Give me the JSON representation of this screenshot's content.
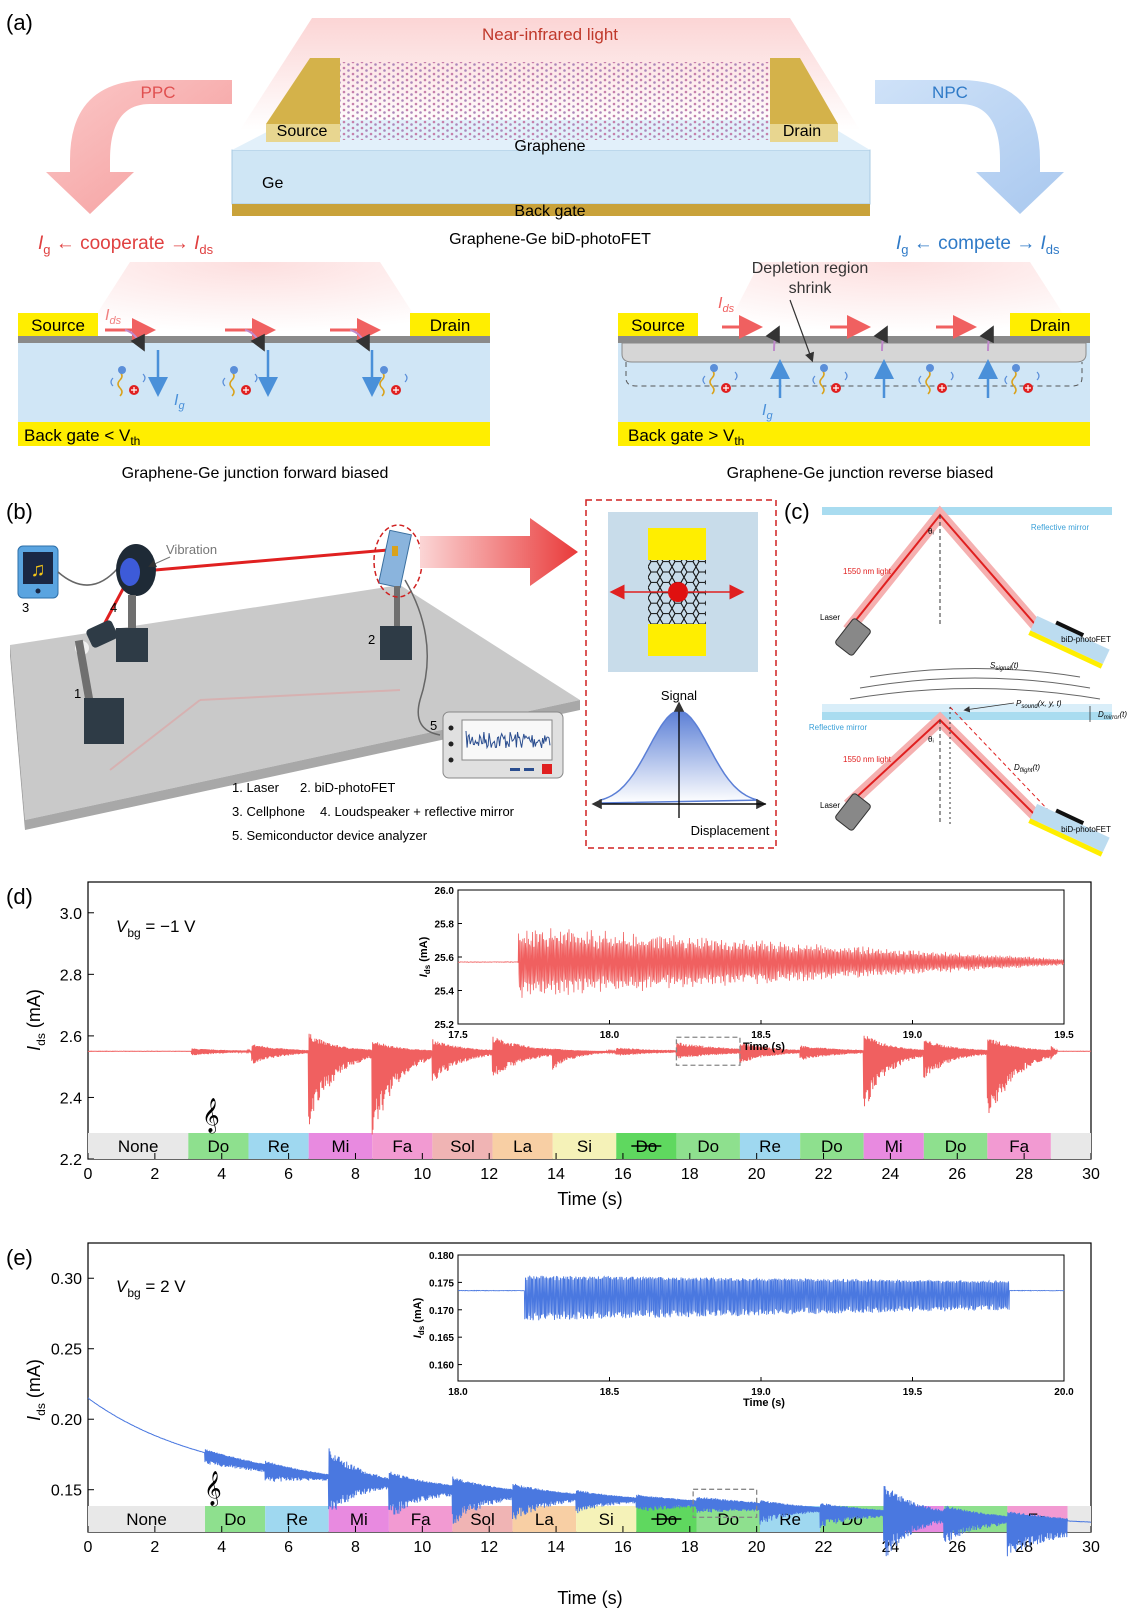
{
  "panel_a": {
    "label": "(a)",
    "near_ir": "Near-infrared light",
    "ppc": "PPC",
    "npc": "NPC",
    "source": "Source",
    "drain": "Drain",
    "graphene": "Graphene",
    "ge": "Ge",
    "back_gate": "Back gate",
    "device_title": "Graphene-Ge biD-photoFET",
    "ig": "I",
    "ig_sub": "g",
    "cooperate": " ← cooperate → ",
    "compete": " ← compete → ",
    "ids": "I",
    "ids_sub": "ds",
    "depletion1": "Depletion region",
    "depletion2": "shrink",
    "bg_lt": "Back gate < V",
    "bg_gt": "Back gate > V",
    "vth_sub": "th",
    "forward": "Graphene-Ge junction forward biased",
    "reverse": "Graphene-Ge junction reverse biased",
    "colors": {
      "ppc": "#f07070",
      "npc": "#4a90d9",
      "gold": "#d4b24a",
      "ge": "#cfe6f5",
      "yellow": "#ffee00"
    }
  },
  "panel_b": {
    "label": "(b)",
    "vibration": "Vibration",
    "n1": "1",
    "n2": "2",
    "n3": "3",
    "n4": "4",
    "n5": "5",
    "legend1": "1. Laser",
    "legend2": "2. biD-photoFET",
    "legend3": "3. Cellphone",
    "legend4": "4. Loudspeaker + reflective mirror",
    "legend5": "5. Semiconductor device analyzer",
    "signal": "Signal",
    "displacement": "Displacement"
  },
  "panel_c": {
    "label": "(c)",
    "mirror": "Reflective mirror",
    "light": "1550 nm light",
    "laser": "Laser",
    "device": "biD-photoFET",
    "theta": "θᵢ",
    "s_signal": "S",
    "s_signal_sub": "signal",
    "s_signal_arg": "(t)",
    "p_sound": "P",
    "p_sound_sub": "sound",
    "p_sound_arg": "(x, y, t)",
    "d_mirror": "D",
    "d_mirror_sub": "mirror",
    "d_mirror_arg": "(t)",
    "d_flight": "D",
    "d_flight_sub": "flight",
    "d_flight_arg": "(t)"
  },
  "chart_data": [
    {
      "type": "line",
      "panel": "(d)",
      "annotation": "V",
      "annotation_sub": "bg",
      "annotation_rest": " = −1 V",
      "xlabel": "Time (s)",
      "ylabel": "I",
      "ylabel_sub": "ds",
      "ylabel_rest": " (mA)",
      "xlim": [
        0,
        30
      ],
      "ylim": [
        2.2,
        3.1
      ],
      "xticks": [
        "0",
        "2",
        "4",
        "6",
        "8",
        "10",
        "12",
        "14",
        "16",
        "18",
        "20",
        "22",
        "24",
        "26",
        "28",
        "30"
      ],
      "yticks": [
        "2.2",
        "2.4",
        "2.6",
        "2.8",
        "3.0"
      ],
      "baseline": 2.55,
      "color": "#f06060",
      "notes": [
        {
          "label": "None",
          "start": 0,
          "end": 3.0,
          "color": "#e8e8e8"
        },
        {
          "label": "Do",
          "start": 3.0,
          "end": 4.8,
          "color": "#8ee08e"
        },
        {
          "label": "Re",
          "start": 4.8,
          "end": 6.6,
          "color": "#9fd8f0"
        },
        {
          "label": "Mi",
          "start": 6.6,
          "end": 8.5,
          "color": "#e88ae0"
        },
        {
          "label": "Fa",
          "start": 8.5,
          "end": 10.3,
          "color": "#f29ad2"
        },
        {
          "label": "Sol",
          "start": 10.3,
          "end": 12.1,
          "color": "#f0b4b4"
        },
        {
          "label": "La",
          "start": 12.1,
          "end": 13.9,
          "color": "#f8cfa4"
        },
        {
          "label": "Si",
          "start": 13.9,
          "end": 15.8,
          "color": "#f5f2b8"
        },
        {
          "label": "Do",
          "start": 15.8,
          "end": 17.6,
          "color": "#5fd85f",
          "strike": true
        },
        {
          "label": "Do",
          "start": 17.6,
          "end": 19.5,
          "color": "#8ee08e"
        },
        {
          "label": "Re",
          "start": 19.5,
          "end": 21.3,
          "color": "#9fd8f0"
        },
        {
          "label": "Do",
          "start": 21.3,
          "end": 23.2,
          "color": "#8ee08e"
        },
        {
          "label": "Mi",
          "start": 23.2,
          "end": 25.0,
          "color": "#e88ae0"
        },
        {
          "label": "Do",
          "start": 25.0,
          "end": 26.9,
          "color": "#8ee08e"
        },
        {
          "label": "Fa",
          "start": 26.9,
          "end": 28.8,
          "color": "#f29ad2"
        },
        {
          "label": "",
          "start": 28.8,
          "end": 30,
          "color": "#e8e8e8"
        }
      ],
      "bursts": [
        {
          "start": 3.1,
          "end": 4.9,
          "down": 0.015,
          "up": 0.01,
          "decay": 0.5
        },
        {
          "start": 4.9,
          "end": 6.6,
          "down": 0.045,
          "up": 0.025,
          "decay": 0.6
        },
        {
          "start": 6.6,
          "end": 8.5,
          "down": 0.25,
          "up": 0.06,
          "decay": 0.8
        },
        {
          "start": 8.5,
          "end": 10.3,
          "down": 0.3,
          "up": 0.04,
          "decay": 0.8
        },
        {
          "start": 10.3,
          "end": 12.1,
          "down": 0.11,
          "up": 0.04,
          "decay": 0.7
        },
        {
          "start": 12.1,
          "end": 13.9,
          "down": 0.09,
          "up": 0.05,
          "decay": 0.6
        },
        {
          "start": 13.9,
          "end": 15.8,
          "down": 0.06,
          "up": 0.01,
          "decay": 0.9
        },
        {
          "start": 15.8,
          "end": 17.6,
          "down": 0.015,
          "up": 0.012,
          "decay": 0.4
        },
        {
          "start": 17.6,
          "end": 19.5,
          "down": 0.025,
          "up": 0.03,
          "decay": 0.4
        },
        {
          "start": 19.5,
          "end": 21.3,
          "down": 0.04,
          "up": 0.03,
          "decay": 0.6
        },
        {
          "start": 21.3,
          "end": 23.2,
          "down": 0.03,
          "up": 0.02,
          "decay": 0.5
        },
        {
          "start": 23.2,
          "end": 25.0,
          "down": 0.2,
          "up": 0.06,
          "decay": 0.8
        },
        {
          "start": 25.0,
          "end": 26.9,
          "down": 0.09,
          "up": 0.04,
          "decay": 0.7
        },
        {
          "start": 26.9,
          "end": 28.8,
          "down": 0.25,
          "up": 0.05,
          "decay": 0.8
        },
        {
          "start": 28.8,
          "end": 29.0,
          "down": 0.03,
          "up": 0.02,
          "decay": 0.5
        }
      ],
      "inset": {
        "xlim": [
          17.5,
          19.5
        ],
        "ylim": [
          25.2,
          26.0
        ],
        "xticks": [
          "17.5",
          "18.0",
          "18.5",
          "19.0",
          "19.5"
        ],
        "yticks": [
          "25.2",
          "25.4",
          "25.6",
          "25.8",
          "26.0"
        ],
        "xlabel": "Time (s)",
        "ylabel": "I",
        "ylabel_sub": "ds",
        "ylabel_rest": " (mA)",
        "baseline": 25.57,
        "onset": 17.7,
        "amp_start": 0.22,
        "amp_end": 0.02
      }
    },
    {
      "type": "line",
      "panel": "(e)",
      "annotation": "V",
      "annotation_sub": "bg",
      "annotation_rest": " = 2 V",
      "xlabel": "Time (s)",
      "ylabel": "I",
      "ylabel_sub": "ds",
      "ylabel_rest": " (mA)",
      "xlim": [
        0,
        30
      ],
      "ylim": [
        0.12,
        0.325
      ],
      "xticks": [
        "0",
        "2",
        "4",
        "6",
        "8",
        "10",
        "12",
        "14",
        "16",
        "18",
        "20",
        "22",
        "24",
        "26",
        "28",
        "30"
      ],
      "yticks": [
        "0.15",
        "0.20",
        "0.25",
        "0.30"
      ],
      "color": "#4a78e0",
      "notes": [
        {
          "label": "None",
          "start": 0,
          "end": 3.5,
          "color": "#e8e8e8"
        },
        {
          "label": "Do",
          "start": 3.5,
          "end": 5.3,
          "color": "#8ee08e"
        },
        {
          "label": "Re",
          "start": 5.3,
          "end": 7.2,
          "color": "#9fd8f0"
        },
        {
          "label": "Mi",
          "start": 7.2,
          "end": 9.0,
          "color": "#e88ae0"
        },
        {
          "label": "Fa",
          "start": 9.0,
          "end": 10.9,
          "color": "#f29ad2"
        },
        {
          "label": "Sol",
          "start": 10.9,
          "end": 12.7,
          "color": "#f0b4b4"
        },
        {
          "label": "La",
          "start": 12.7,
          "end": 14.6,
          "color": "#f8cfa4"
        },
        {
          "label": "Si",
          "start": 14.6,
          "end": 16.4,
          "color": "#f5f2b8"
        },
        {
          "label": "Do",
          "start": 16.4,
          "end": 18.2,
          "color": "#5fd85f",
          "strike": true
        },
        {
          "label": "Do",
          "start": 18.2,
          "end": 20.1,
          "color": "#8ee08e"
        },
        {
          "label": "Re",
          "start": 20.1,
          "end": 21.9,
          "color": "#9fd8f0"
        },
        {
          "label": "Do",
          "start": 21.9,
          "end": 23.8,
          "color": "#8ee08e"
        },
        {
          "label": "Mi",
          "start": 23.8,
          "end": 25.6,
          "color": "#e88ae0"
        },
        {
          "label": "Do",
          "start": 25.6,
          "end": 27.5,
          "color": "#8ee08e"
        },
        {
          "label": "Fa",
          "start": 27.5,
          "end": 29.3,
          "color": "#f29ad2"
        },
        {
          "label": "",
          "start": 29.3,
          "end": 30,
          "color": "#e8e8e8"
        }
      ],
      "bursts": [
        {
          "start": 3.5,
          "end": 5.3,
          "down": 0.008,
          "up": 0.003,
          "decay": 0.2
        },
        {
          "start": 5.3,
          "end": 7.2,
          "down": 0.012,
          "up": 0.004,
          "decay": 0.4
        },
        {
          "start": 7.2,
          "end": 9.0,
          "down": 0.03,
          "up": 0.02,
          "decay": 0.6
        },
        {
          "start": 9.0,
          "end": 10.9,
          "down": 0.028,
          "up": 0.008,
          "decay": 0.5
        },
        {
          "start": 10.9,
          "end": 12.7,
          "down": 0.028,
          "up": 0.008,
          "decay": 0.5
        },
        {
          "start": 12.7,
          "end": 14.6,
          "down": 0.022,
          "up": 0.006,
          "decay": 0.5
        },
        {
          "start": 14.6,
          "end": 16.4,
          "down": 0.014,
          "up": 0.004,
          "decay": 0.5
        },
        {
          "start": 16.4,
          "end": 18.2,
          "down": 0.01,
          "up": 0.003,
          "decay": 0.3
        },
        {
          "start": 18.2,
          "end": 20.1,
          "down": 0.008,
          "up": 0.004,
          "decay": 0.2
        },
        {
          "start": 20.1,
          "end": 21.9,
          "down": 0.014,
          "up": 0.004,
          "decay": 0.5
        },
        {
          "start": 21.9,
          "end": 23.8,
          "down": 0.014,
          "up": 0.004,
          "decay": 0.4
        },
        {
          "start": 23.8,
          "end": 25.6,
          "down": 0.035,
          "up": 0.02,
          "decay": 0.6
        },
        {
          "start": 25.6,
          "end": 27.5,
          "down": 0.022,
          "up": 0.007,
          "decay": 0.5
        },
        {
          "start": 27.5,
          "end": 29.3,
          "down": 0.028,
          "up": 0.005,
          "decay": 0.3
        }
      ],
      "inset": {
        "xlim": [
          18.0,
          20.0
        ],
        "ylim": [
          0.157,
          0.18
        ],
        "xticks": [
          "18.0",
          "18.5",
          "19.0",
          "19.5",
          "20.0"
        ],
        "yticks": [
          "0.160",
          "0.165",
          "0.170",
          "0.175",
          "0.180"
        ],
        "xlabel": "Time (s)",
        "ylabel": "I",
        "ylabel_sub": "ds",
        "ylabel_rest": " (mA)",
        "baseline": 0.1735,
        "onset": 18.22,
        "offset": 19.82,
        "amp_start": 0.0055,
        "amp_end": 0.0035
      }
    }
  ]
}
